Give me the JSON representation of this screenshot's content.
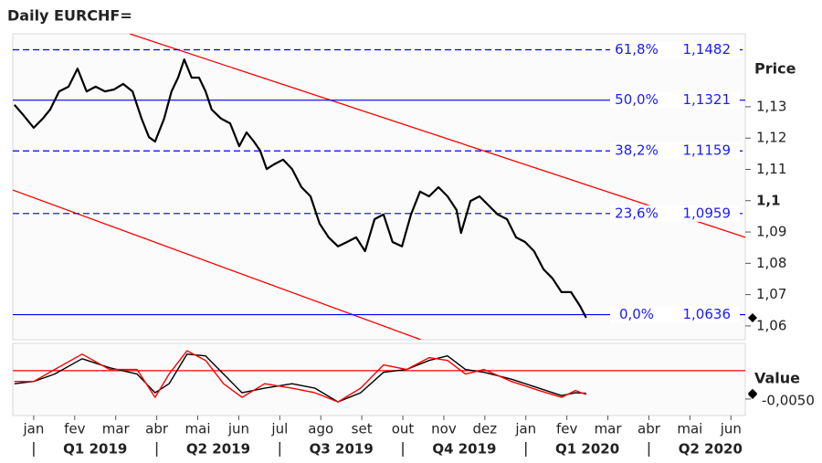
{
  "chart_data": {
    "type": "line",
    "title": "Daily EURCHF=",
    "y_label": "Price",
    "y2_label": "Value",
    "xlim": [
      -0.51,
      17.35
    ],
    "xticks": [
      {
        "value": 0,
        "label": "jan"
      },
      {
        "value": 1,
        "label": "fev"
      },
      {
        "value": 2,
        "label": "mar"
      },
      {
        "value": 3,
        "label": "abr"
      },
      {
        "value": 4,
        "label": "mai"
      },
      {
        "value": 5,
        "label": "jun"
      },
      {
        "value": 6,
        "label": "jul"
      },
      {
        "value": 7,
        "label": "ago"
      },
      {
        "value": 8,
        "label": "set"
      },
      {
        "value": 9,
        "label": "out"
      },
      {
        "value": 10,
        "label": "nov"
      },
      {
        "value": 11,
        "label": "dez"
      },
      {
        "value": 12,
        "label": "jan"
      },
      {
        "value": 13,
        "label": "fev"
      },
      {
        "value": 14,
        "label": "mar"
      },
      {
        "value": 15,
        "label": "abr"
      },
      {
        "value": 16,
        "label": "mai"
      },
      {
        "value": 17,
        "label": "jun"
      }
    ],
    "quarter_labels": [
      "Q1 2019",
      "Q2 2019",
      "Q3 2019",
      "Q4 2019",
      "Q1 2020",
      "Q2 2020"
    ],
    "ylim": [
      1.0556,
      1.1533
    ],
    "yticks": [
      {
        "value": 1.06,
        "label": "1,06"
      },
      {
        "value": 1.07,
        "label": "1,07"
      },
      {
        "value": 1.08,
        "label": "1,08"
      },
      {
        "value": 1.09,
        "label": "1,09"
      },
      {
        "value": 1.1,
        "label": "1,1"
      },
      {
        "value": 1.11,
        "label": "1,11"
      },
      {
        "value": 1.12,
        "label": "1,12"
      },
      {
        "value": 1.13,
        "label": "1,13"
      }
    ],
    "y2lim": [
      -0.0079,
      0.0048
    ],
    "y2ticks": [
      {
        "value": -0.005,
        "label": "-0,0050"
      }
    ],
    "series": [
      {
        "color": "#000000",
        "x": [
          -0.47,
          -0.27,
          0,
          0.22,
          0.4,
          0.62,
          0.85,
          1.07,
          1.29,
          1.51,
          1.74,
          1.96,
          2.18,
          2.41,
          2.63,
          2.81,
          2.96,
          3.18,
          3.36,
          3.52,
          3.67,
          3.85,
          4.03,
          4.19,
          4.34,
          4.57,
          4.79,
          5.01,
          5.19,
          5.37,
          5.52,
          5.68,
          5.86,
          6.08,
          6.3,
          6.53,
          6.75,
          6.97,
          7.19,
          7.42,
          7.64,
          7.86,
          8.08,
          8.31,
          8.53,
          8.75,
          8.98,
          9.2,
          9.42,
          9.64,
          9.87,
          10.09,
          10.31,
          10.42,
          10.65,
          10.87,
          11.09,
          11.31,
          11.54,
          11.76,
          11.98,
          12.2,
          12.43,
          12.65,
          12.87,
          13.1,
          13.32,
          13.47
        ],
        "values": [
          1.1306,
          1.1276,
          1.1233,
          1.1262,
          1.1291,
          1.1349,
          1.1364,
          1.1422,
          1.1349,
          1.1364,
          1.1349,
          1.1355,
          1.1373,
          1.1349,
          1.1262,
          1.1203,
          1.1189,
          1.1262,
          1.1349,
          1.1393,
          1.1451,
          1.1393,
          1.1393,
          1.1349,
          1.1291,
          1.1262,
          1.1247,
          1.1174,
          1.1218,
          1.1189,
          1.116,
          1.1101,
          1.1116,
          1.1131,
          1.1101,
          1.1043,
          1.1014,
          1.0927,
          1.0883,
          1.0854,
          1.0868,
          1.0883,
          1.0839,
          1.0941,
          1.0956,
          1.0868,
          1.0854,
          1.0956,
          1.1029,
          1.1014,
          1.1043,
          1.1014,
          1.097,
          1.0897,
          1.0999,
          1.1014,
          1.0985,
          1.0956,
          1.0941,
          1.0883,
          1.0868,
          1.0839,
          1.0781,
          1.0752,
          1.0708,
          1.0708,
          1.0664,
          1.0626
        ]
      },
      {
        "color": "#000000",
        "axis": "y2",
        "x": [
          -0.47,
          0,
          0.51,
          1.18,
          1.85,
          2.52,
          2.96,
          3.3,
          3.74,
          4.19,
          4.63,
          5.08,
          5.63,
          6.3,
          6.86,
          7.42,
          7.97,
          8.53,
          9.09,
          9.64,
          10.09,
          10.53,
          10.98,
          11.65,
          12.32,
          12.87,
          13.21,
          13.47
        ],
        "values": [
          -0.0023,
          -0.0019,
          -0.0006,
          0.0021,
          0.0005,
          -0.0006,
          -0.0039,
          -0.0023,
          0.0029,
          0.0026,
          -0.0006,
          -0.0039,
          -0.0031,
          -0.0023,
          -0.0031,
          -0.0055,
          -0.0039,
          -0.0003,
          0.0002,
          0.0018,
          0.0026,
          0.0002,
          -0.0003,
          -0.0015,
          -0.0031,
          -0.0044,
          -0.0039,
          -0.004
        ]
      },
      {
        "color": "#ff0000",
        "axis": "y2",
        "x": [
          -0.47,
          0,
          0.51,
          1.18,
          1.85,
          2.52,
          2.96,
          3.3,
          3.74,
          4.19,
          4.63,
          5.08,
          5.63,
          6.3,
          6.86,
          7.42,
          7.97,
          8.53,
          9.09,
          9.64,
          10.09,
          10.53,
          10.98,
          11.65,
          12.32,
          12.87,
          13.21,
          13.47
        ],
        "values": [
          -0.0019,
          -0.0019,
          0.0002,
          0.0029,
          0.0002,
          0.0002,
          -0.0047,
          -0.0006,
          0.0035,
          0.0018,
          -0.0023,
          -0.0047,
          -0.0023,
          -0.0031,
          -0.0039,
          -0.0055,
          -0.0031,
          0.001,
          0.0002,
          0.0023,
          0.0018,
          -0.0006,
          0.0002,
          -0.0019,
          -0.0035,
          -0.0047,
          -0.0035,
          -0.0042
        ]
      }
    ],
    "fibonacci": {
      "color": "#0000ff",
      "values": [
        1.1482,
        1.1321,
        1.1159,
        1.0959,
        1.0636
      ],
      "value_labels": [
        "1,1482",
        "1,1321",
        "1,1159",
        "1,0959",
        "1,0636"
      ],
      "level_labels": [
        "61,8%",
        "50,0%",
        "38,2%",
        "23,6%",
        "0,0%"
      ],
      "dashed": [
        true,
        false,
        true,
        true,
        false
      ]
    },
    "trend_color": "#ff0000",
    "trend_lines": [
      {
        "x": [
          2.34,
          17.35
        ],
        "values": [
          1.1533,
          1.0883
        ]
      },
      {
        "x": [
          -0.51,
          9.44
        ],
        "values": [
          1.1034,
          1.0556
        ]
      }
    ],
    "y2_reference": 0,
    "y2_reference_color": "#ff0000"
  }
}
